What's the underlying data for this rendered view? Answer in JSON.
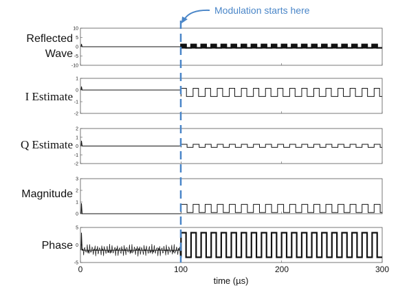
{
  "annotation": {
    "text": "Modulation starts here",
    "x": 100,
    "color": "#4a86c8"
  },
  "x_ticks": [
    "0",
    "100",
    "200",
    "300"
  ],
  "x_label": "time (µs)",
  "chart_data": [
    {
      "type": "line",
      "panel_label": "Reflected Wave",
      "xlim": [
        0,
        300
      ],
      "ylim": [
        -10,
        10
      ],
      "y_ticks": [
        "10",
        "5",
        "0",
        "-5",
        "-10"
      ],
      "pre_level": 0,
      "high": 1.2,
      "low": -0.6,
      "period": 10,
      "duty": 0.5,
      "dense": true
    },
    {
      "type": "line",
      "panel_label": "I Estimate",
      "xlim": [
        0,
        300
      ],
      "ylim": [
        -2,
        1
      ],
      "y_ticks": [
        "1",
        "0",
        "-1",
        "-2"
      ],
      "pre_level": 0,
      "high": 0.15,
      "low": -0.55,
      "period": 12,
      "duty": 0.45,
      "dense": false
    },
    {
      "type": "line",
      "panel_label": "Q Estimate",
      "xlim": [
        0,
        300
      ],
      "ylim": [
        -2,
        2
      ],
      "y_ticks": [
        "2",
        "1",
        "0",
        "-1",
        "-2"
      ],
      "pre_level": 0,
      "high": 0.2,
      "low": -0.15,
      "period": 12,
      "duty": 0.5,
      "dense": false
    },
    {
      "type": "line",
      "panel_label": "Magnitude",
      "xlim": [
        0,
        300
      ],
      "ylim": [
        0,
        3
      ],
      "y_ticks": [
        "3",
        "2",
        "1",
        "0"
      ],
      "pre_level": 0,
      "high": 0.8,
      "low": 0.1,
      "period": 12,
      "duty": 0.5,
      "dense": false
    },
    {
      "type": "line",
      "panel_label": "Phase",
      "xlim": [
        0,
        300
      ],
      "ylim": [
        -5,
        5
      ],
      "y_ticks": [
        "5",
        "0",
        "-5"
      ],
      "pre_level": -1.5,
      "high": 3.5,
      "low": -3.5,
      "period": 10,
      "duty": 0.5,
      "dense": true
    }
  ]
}
